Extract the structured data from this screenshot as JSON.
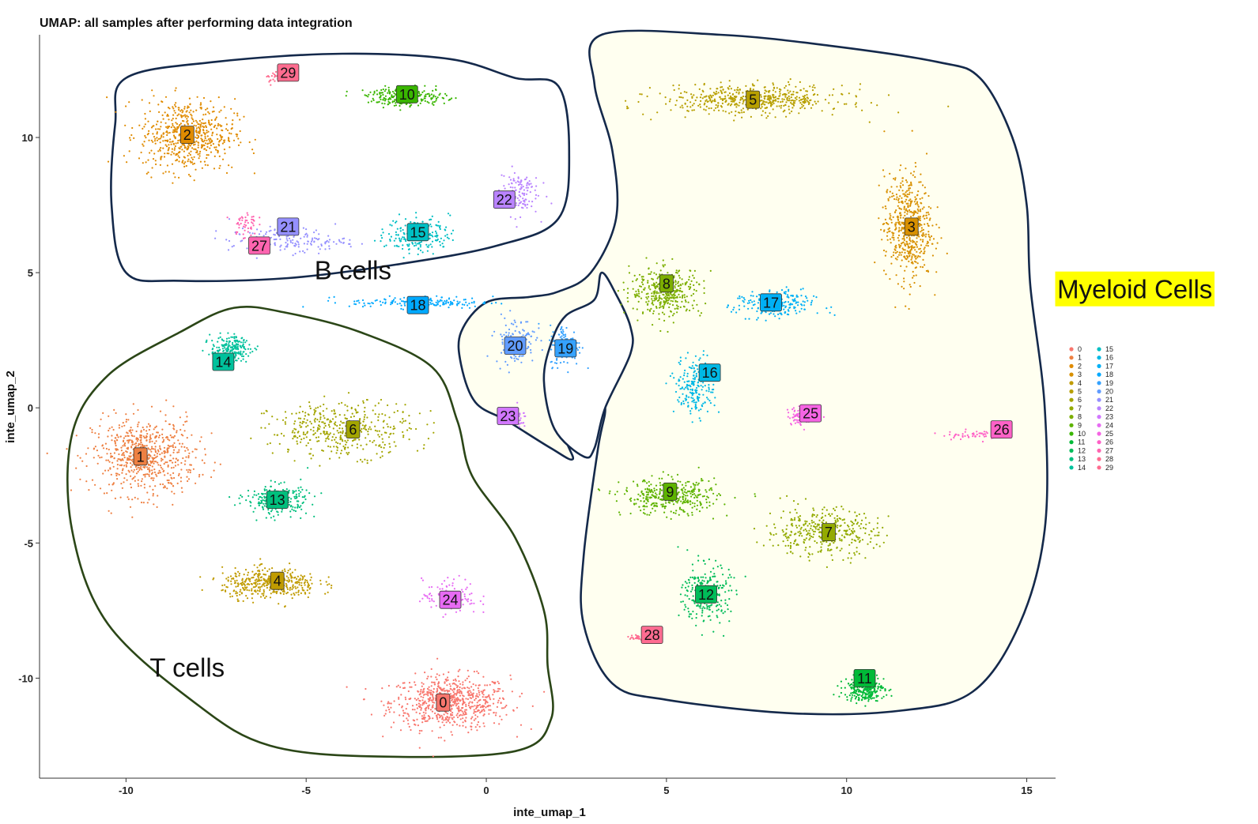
{
  "chart_data": {
    "type": "scatter",
    "title": "UMAP: all samples after performing data integration",
    "xlabel": "inte_umap_1",
    "ylabel": "inte_umap_2",
    "xlim": [
      -12.4,
      15.8
    ],
    "ylim": [
      -13.7,
      13.8
    ],
    "x_ticks": [
      -10,
      -5,
      0,
      5,
      10,
      15
    ],
    "y_ticks": [
      -10,
      -5,
      0,
      5,
      10
    ],
    "x_tick_labels": [
      "-10",
      "-5",
      "0",
      "5",
      "10",
      "15"
    ],
    "y_tick_labels": [
      "-10",
      "-5",
      "0",
      "5",
      "10"
    ],
    "grid": false,
    "legend_placement": "right",
    "clusters": [
      {
        "id": "0",
        "color": "#F8766D",
        "x": -1.0,
        "y": -10.9,
        "sx": 1.5,
        "sy": 0.9,
        "n": 700
      },
      {
        "id": "1",
        "color": "#EE8042",
        "x": -9.5,
        "y": -1.8,
        "sx": 1.3,
        "sy": 1.3,
        "n": 650
      },
      {
        "id": "2",
        "color": "#E08B00",
        "x": -8.3,
        "y": 10.1,
        "sx": 1.2,
        "sy": 1.2,
        "n": 600
      },
      {
        "id": "3",
        "color": "#D89000",
        "x": 11.7,
        "y": 6.7,
        "sx": 0.6,
        "sy": 1.8,
        "n": 520
      },
      {
        "id": "4",
        "color": "#C09B00",
        "x": -6.0,
        "y": -6.5,
        "sx": 1.2,
        "sy": 0.5,
        "n": 420
      },
      {
        "id": "5",
        "color": "#B79F00",
        "x": 7.4,
        "y": 11.4,
        "sx": 2.3,
        "sy": 0.5,
        "n": 520
      },
      {
        "id": "6",
        "color": "#A3A500",
        "x": -4.0,
        "y": -0.8,
        "sx": 1.8,
        "sy": 0.9,
        "n": 420
      },
      {
        "id": "7",
        "color": "#93AA00",
        "x": 9.3,
        "y": -4.6,
        "sx": 1.4,
        "sy": 0.8,
        "n": 380
      },
      {
        "id": "8",
        "color": "#7CAE00",
        "x": 5.0,
        "y": 4.3,
        "sx": 0.9,
        "sy": 0.8,
        "n": 380
      },
      {
        "id": "9",
        "color": "#5EB300",
        "x": 5.1,
        "y": -3.3,
        "sx": 1.2,
        "sy": 0.6,
        "n": 360
      },
      {
        "id": "10",
        "color": "#39B600",
        "x": -2.2,
        "y": 11.5,
        "sx": 1.0,
        "sy": 0.3,
        "n": 260
      },
      {
        "id": "11",
        "color": "#00BA38",
        "x": 10.5,
        "y": -10.4,
        "sx": 0.5,
        "sy": 0.4,
        "n": 260
      },
      {
        "id": "12",
        "color": "#00BC59",
        "x": 6.1,
        "y": -6.9,
        "sx": 0.6,
        "sy": 1.0,
        "n": 260
      },
      {
        "id": "13",
        "color": "#00BF7D",
        "x": -5.8,
        "y": -3.4,
        "sx": 0.8,
        "sy": 0.5,
        "n": 260
      },
      {
        "id": "14",
        "color": "#00C19C",
        "x": -7.1,
        "y": 2.2,
        "sx": 0.5,
        "sy": 0.4,
        "n": 200
      },
      {
        "id": "15",
        "color": "#00BFC4",
        "x": -1.9,
        "y": 6.4,
        "sx": 0.8,
        "sy": 0.6,
        "n": 200
      },
      {
        "id": "16",
        "color": "#00B8E5",
        "x": 5.8,
        "y": 0.8,
        "sx": 0.5,
        "sy": 1.0,
        "n": 200
      },
      {
        "id": "17",
        "color": "#00B0F6",
        "x": 8.0,
        "y": 3.8,
        "sx": 1.0,
        "sy": 0.5,
        "n": 200
      },
      {
        "id": "18",
        "color": "#00A9FF",
        "x": -1.8,
        "y": 3.9,
        "sx": 1.8,
        "sy": 0.2,
        "n": 160
      },
      {
        "id": "19",
        "color": "#35A2FF",
        "x": 2.2,
        "y": 2.3,
        "sx": 0.4,
        "sy": 0.7,
        "n": 130
      },
      {
        "id": "20",
        "color": "#619CFF",
        "x": 0.8,
        "y": 2.5,
        "sx": 0.5,
        "sy": 0.8,
        "n": 130
      },
      {
        "id": "21",
        "color": "#9590FF",
        "x": -5.5,
        "y": 6.2,
        "sx": 1.5,
        "sy": 0.4,
        "n": 170
      },
      {
        "id": "22",
        "color": "#B983FF",
        "x": 0.9,
        "y": 8.0,
        "sx": 0.5,
        "sy": 0.8,
        "n": 120
      },
      {
        "id": "23",
        "color": "#D177FF",
        "x": 0.8,
        "y": -0.4,
        "sx": 0.3,
        "sy": 0.3,
        "n": 40
      },
      {
        "id": "24",
        "color": "#E76BF3",
        "x": -1.0,
        "y": -7.0,
        "sx": 0.7,
        "sy": 0.6,
        "n": 110
      },
      {
        "id": "25",
        "color": "#F564E3",
        "x": 8.8,
        "y": -0.3,
        "sx": 0.4,
        "sy": 0.3,
        "n": 90
      },
      {
        "id": "26",
        "color": "#FF61C7",
        "x": 13.5,
        "y": -1.0,
        "sx": 0.8,
        "sy": 0.15,
        "n": 60
      },
      {
        "id": "27",
        "color": "#FF64B0",
        "x": -6.7,
        "y": 6.8,
        "sx": 0.3,
        "sy": 0.5,
        "n": 50
      },
      {
        "id": "28",
        "color": "#FF6C91",
        "x": 4.2,
        "y": -8.5,
        "sx": 0.2,
        "sy": 0.1,
        "n": 30
      },
      {
        "id": "29",
        "color": "#FF6C8F",
        "x": -5.8,
        "y": 12.2,
        "sx": 0.3,
        "sy": 0.2,
        "n": 30
      }
    ],
    "labels": [
      {
        "id": "0",
        "x": -1.2,
        "y": -10.9
      },
      {
        "id": "1",
        "x": -9.6,
        "y": -1.8
      },
      {
        "id": "2",
        "x": -8.3,
        "y": 10.1
      },
      {
        "id": "3",
        "x": 11.8,
        "y": 6.7
      },
      {
        "id": "4",
        "x": -5.8,
        "y": -6.4
      },
      {
        "id": "5",
        "x": 7.4,
        "y": 11.4
      },
      {
        "id": "6",
        "x": -3.7,
        "y": -0.8
      },
      {
        "id": "7",
        "x": 9.5,
        "y": -4.6
      },
      {
        "id": "8",
        "x": 5.0,
        "y": 4.6
      },
      {
        "id": "9",
        "x": 5.1,
        "y": -3.1
      },
      {
        "id": "10",
        "x": -2.2,
        "y": 11.6
      },
      {
        "id": "11",
        "x": 10.5,
        "y": -10.0
      },
      {
        "id": "12",
        "x": 6.1,
        "y": -6.9
      },
      {
        "id": "13",
        "x": -5.8,
        "y": -3.4
      },
      {
        "id": "14",
        "x": -7.3,
        "y": 1.7
      },
      {
        "id": "15",
        "x": -1.9,
        "y": 6.5
      },
      {
        "id": "16",
        "x": 6.2,
        "y": 1.3
      },
      {
        "id": "17",
        "x": 7.9,
        "y": 3.9
      },
      {
        "id": "18",
        "x": -1.9,
        "y": 3.8
      },
      {
        "id": "19",
        "x": 2.2,
        "y": 2.2
      },
      {
        "id": "20",
        "x": 0.8,
        "y": 2.3
      },
      {
        "id": "21",
        "x": -5.5,
        "y": 6.7
      },
      {
        "id": "22",
        "x": 0.5,
        "y": 7.7
      },
      {
        "id": "23",
        "x": 0.6,
        "y": -0.3
      },
      {
        "id": "24",
        "x": -1.0,
        "y": -7.1
      },
      {
        "id": "25",
        "x": 9.0,
        "y": -0.2
      },
      {
        "id": "26",
        "x": 14.3,
        "y": -0.8
      },
      {
        "id": "27",
        "x": -6.3,
        "y": 6.0
      },
      {
        "id": "28",
        "x": 4.6,
        "y": -8.4
      },
      {
        "id": "29",
        "x": -5.5,
        "y": 12.4
      }
    ],
    "annotations": [
      {
        "name": "b-cells-label",
        "text": "B cells",
        "x": -3.7,
        "y": 5.1
      },
      {
        "name": "t-cells-label",
        "text": "T cells",
        "x": -8.3,
        "y": -9.6
      },
      {
        "name": "myeloid-cells-label",
        "text": "Myeloid Cells",
        "x": 18.0,
        "y": 4.4,
        "highlight": "#FFFF00"
      }
    ],
    "regions": [
      {
        "name": "b-cells-region",
        "stroke": "#14294B",
        "fill": "none",
        "points": [
          [
            -10.0,
            12.2
          ],
          [
            -7.5,
            12.8
          ],
          [
            -4.0,
            13.1
          ],
          [
            -1.0,
            12.9
          ],
          [
            0.8,
            12.2
          ],
          [
            2.0,
            11.9
          ],
          [
            2.3,
            9.5
          ],
          [
            2.0,
            7.0
          ],
          [
            0.3,
            6.0
          ],
          [
            -2.5,
            5.3
          ],
          [
            -5.5,
            4.8
          ],
          [
            -8.5,
            4.7
          ],
          [
            -10.0,
            5.0
          ],
          [
            -10.4,
            7.5
          ],
          [
            -10.3,
            10.5
          ]
        ]
      },
      {
        "name": "t-cells-region",
        "stroke": "#2B4617",
        "fill": "none",
        "points": [
          [
            -7.0,
            3.7
          ],
          [
            -5.5,
            3.5
          ],
          [
            -3.5,
            2.8
          ],
          [
            -1.5,
            1.5
          ],
          [
            -0.8,
            -0.5
          ],
          [
            -0.4,
            -2.5
          ],
          [
            0.8,
            -4.8
          ],
          [
            1.6,
            -7.5
          ],
          [
            1.7,
            -9.5
          ],
          [
            1.8,
            -11.5
          ],
          [
            0.8,
            -12.7
          ],
          [
            -3.0,
            -12.9
          ],
          [
            -6.0,
            -12.5
          ],
          [
            -8.0,
            -11.0
          ],
          [
            -10.5,
            -8.0
          ],
          [
            -11.5,
            -4.5
          ],
          [
            -11.5,
            -1.0
          ],
          [
            -10.5,
            1.2
          ],
          [
            -8.5,
            2.8
          ]
        ]
      },
      {
        "name": "myeloid-cells-region",
        "stroke": "#14294B",
        "fill": "#FFFFF0",
        "points": [
          [
            3.0,
            12.0
          ],
          [
            3.2,
            13.8
          ],
          [
            6.5,
            13.8
          ],
          [
            9.5,
            13.4
          ],
          [
            12.5,
            12.8
          ],
          [
            13.7,
            12.2
          ],
          [
            14.6,
            10.0
          ],
          [
            15.0,
            7.5
          ],
          [
            15.1,
            4.5
          ],
          [
            15.5,
            0.0
          ],
          [
            15.5,
            -4.5
          ],
          [
            14.8,
            -8.0
          ],
          [
            13.5,
            -10.5
          ],
          [
            11.5,
            -11.2
          ],
          [
            8.5,
            -11.3
          ],
          [
            5.0,
            -10.8
          ],
          [
            3.5,
            -10.2
          ],
          [
            2.7,
            -8.0
          ],
          [
            2.7,
            -5.5
          ],
          [
            3.1,
            -1.5
          ],
          [
            3.3,
            0.0
          ],
          [
            3.0,
            0.5
          ],
          [
            2.6,
            0.0
          ],
          [
            2.2,
            -1.0
          ],
          [
            2.4,
            -1.9
          ],
          [
            1.8,
            -1.5
          ],
          [
            0.6,
            -0.5
          ],
          [
            -0.3,
            0.2
          ],
          [
            -0.7,
            1.6
          ],
          [
            -0.7,
            2.8
          ],
          [
            0.0,
            3.9
          ],
          [
            1.2,
            4.1
          ],
          [
            2.0,
            4.3
          ],
          [
            2.9,
            5.0
          ],
          [
            3.6,
            7.0
          ],
          [
            3.5,
            9.5
          ]
        ]
      },
      {
        "name": "inner-divider-region",
        "stroke": "#14294B",
        "fill": "#FFFFFF",
        "points": [
          [
            3.2,
            5.0
          ],
          [
            3.0,
            4.0
          ],
          [
            2.2,
            3.4
          ],
          [
            1.8,
            2.4
          ],
          [
            1.6,
            1.0
          ],
          [
            1.9,
            -0.8
          ],
          [
            2.7,
            -1.8
          ],
          [
            3.0,
            -1.5
          ],
          [
            3.3,
            0.0
          ],
          [
            4.0,
            2.0
          ],
          [
            4.0,
            3.0
          ],
          [
            3.6,
            4.2
          ]
        ]
      }
    ],
    "legend": {
      "entries": [
        "0",
        "1",
        "2",
        "3",
        "4",
        "5",
        "6",
        "7",
        "8",
        "9",
        "10",
        "11",
        "12",
        "13",
        "14",
        "15",
        "16",
        "17",
        "18",
        "19",
        "20",
        "21",
        "22",
        "23",
        "24",
        "25",
        "26",
        "27",
        "28",
        "29"
      ],
      "columns": 2
    }
  }
}
